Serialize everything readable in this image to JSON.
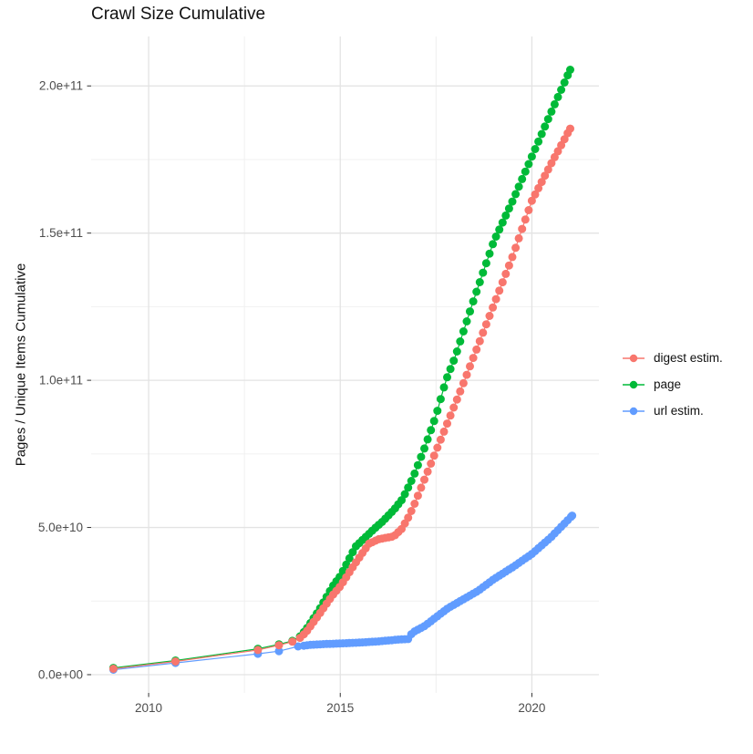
{
  "chart_data": {
    "type": "scatter",
    "title": "Crawl Size Cumulative",
    "xlabel": "",
    "ylabel": "Pages / Unique Items Cumulative",
    "value_unit": "value_e9 = billions of items (1e9)",
    "xlim": [
      2008.5,
      2021.75
    ],
    "ylim_e9": [
      -6.2,
      216.8
    ],
    "grid": "on",
    "legend_position": "right",
    "x_ticks": [
      {
        "label": "2010",
        "year": 2010
      },
      {
        "label": "2015",
        "year": 2015
      },
      {
        "label": "2020",
        "year": 2020
      }
    ],
    "x_minor_years": [
      2012.5,
      2017.5
    ],
    "y_ticks": [
      {
        "label": "0.0e+00",
        "value_e9": 0
      },
      {
        "label": "5.0e+10",
        "value_e9": 50
      },
      {
        "label": "1.0e+11",
        "value_e9": 100
      },
      {
        "label": "1.5e+11",
        "value_e9": 150
      },
      {
        "label": "2.0e+11",
        "value_e9": 200
      }
    ],
    "y_minor_e9": [
      25,
      75,
      125,
      175
    ],
    "dense_from_year": 2014.05,
    "dot_step_years": 0.085,
    "series": [
      {
        "name": "digest estim.",
        "color": "#F8766D",
        "points": [
          [
            2009.08,
            2.0
          ],
          [
            2010.7,
            4.5
          ],
          [
            2012.85,
            8.4
          ],
          [
            2013.4,
            10.0
          ],
          [
            2013.75,
            11.2
          ],
          [
            2013.95,
            12.5
          ],
          [
            2014.1,
            14.3
          ],
          [
            2014.45,
            20.5
          ],
          [
            2014.8,
            27.0
          ],
          [
            2015.0,
            30.0
          ],
          [
            2015.4,
            38.0
          ],
          [
            2015.75,
            44.5
          ],
          [
            2016.0,
            46.0
          ],
          [
            2016.4,
            47.0
          ],
          [
            2016.6,
            49.5
          ],
          [
            2016.75,
            52.8
          ],
          [
            2016.9,
            56.8
          ],
          [
            2017.2,
            66.4
          ],
          [
            2017.5,
            76.0
          ],
          [
            2017.8,
            85.6
          ],
          [
            2018.17,
            97.5
          ],
          [
            2018.5,
            108.6
          ],
          [
            2019.0,
            125.4
          ],
          [
            2019.5,
            142.2
          ],
          [
            2020.0,
            161.0
          ],
          [
            2020.5,
            173.5
          ],
          [
            2021.0,
            185.5
          ]
        ]
      },
      {
        "name": "page",
        "color": "#00BA38",
        "points": [
          [
            2009.08,
            2.3
          ],
          [
            2010.7,
            4.8
          ],
          [
            2012.85,
            8.8
          ],
          [
            2013.4,
            10.3
          ],
          [
            2013.75,
            11.5
          ],
          [
            2013.95,
            13.0
          ],
          [
            2014.1,
            15.2
          ],
          [
            2014.45,
            22.0
          ],
          [
            2014.8,
            30.0
          ],
          [
            2015.0,
            33.5
          ],
          [
            2015.4,
            43.5
          ],
          [
            2015.9,
            49.7
          ],
          [
            2016.1,
            52.0
          ],
          [
            2016.4,
            56.0
          ],
          [
            2016.62,
            59.6
          ],
          [
            2016.9,
            67.0
          ],
          [
            2017.2,
            77.0
          ],
          [
            2017.5,
            88.0
          ],
          [
            2017.75,
            99.7
          ],
          [
            2018.0,
            108.0
          ],
          [
            2018.5,
            128.0
          ],
          [
            2019.0,
            147.0
          ],
          [
            2019.5,
            161.0
          ],
          [
            2020.0,
            176.0
          ],
          [
            2020.5,
            191.0
          ],
          [
            2021.0,
            205.5
          ]
        ]
      },
      {
        "name": "url estim.",
        "color": "#619CFF",
        "points": [
          [
            2009.08,
            1.7
          ],
          [
            2010.7,
            4.0
          ],
          [
            2012.85,
            7.1
          ],
          [
            2013.4,
            8.0
          ],
          [
            2013.9,
            9.6
          ],
          [
            2014.2,
            10.1
          ],
          [
            2014.6,
            10.4
          ],
          [
            2015.0,
            10.6
          ],
          [
            2015.5,
            10.9
          ],
          [
            2016.0,
            11.3
          ],
          [
            2016.5,
            11.9
          ],
          [
            2016.78,
            12.1
          ],
          [
            2016.88,
            14.3
          ],
          [
            2017.2,
            16.5
          ],
          [
            2017.8,
            22.5
          ],
          [
            2018.2,
            25.5
          ],
          [
            2018.6,
            28.5
          ],
          [
            2019.0,
            32.4
          ],
          [
            2019.5,
            36.5
          ],
          [
            2020.0,
            41.0
          ],
          [
            2020.5,
            46.7
          ],
          [
            2021.05,
            54.0
          ]
        ]
      }
    ],
    "colors": {
      "grid_major": "#e3e3e3",
      "grid_minor": "#f0f0f0",
      "tick_mark": "#333333",
      "tick_label": "#4d4d4d"
    }
  },
  "legend": {
    "items": [
      {
        "label": "digest estim."
      },
      {
        "label": "page"
      },
      {
        "label": "url estim."
      }
    ]
  }
}
